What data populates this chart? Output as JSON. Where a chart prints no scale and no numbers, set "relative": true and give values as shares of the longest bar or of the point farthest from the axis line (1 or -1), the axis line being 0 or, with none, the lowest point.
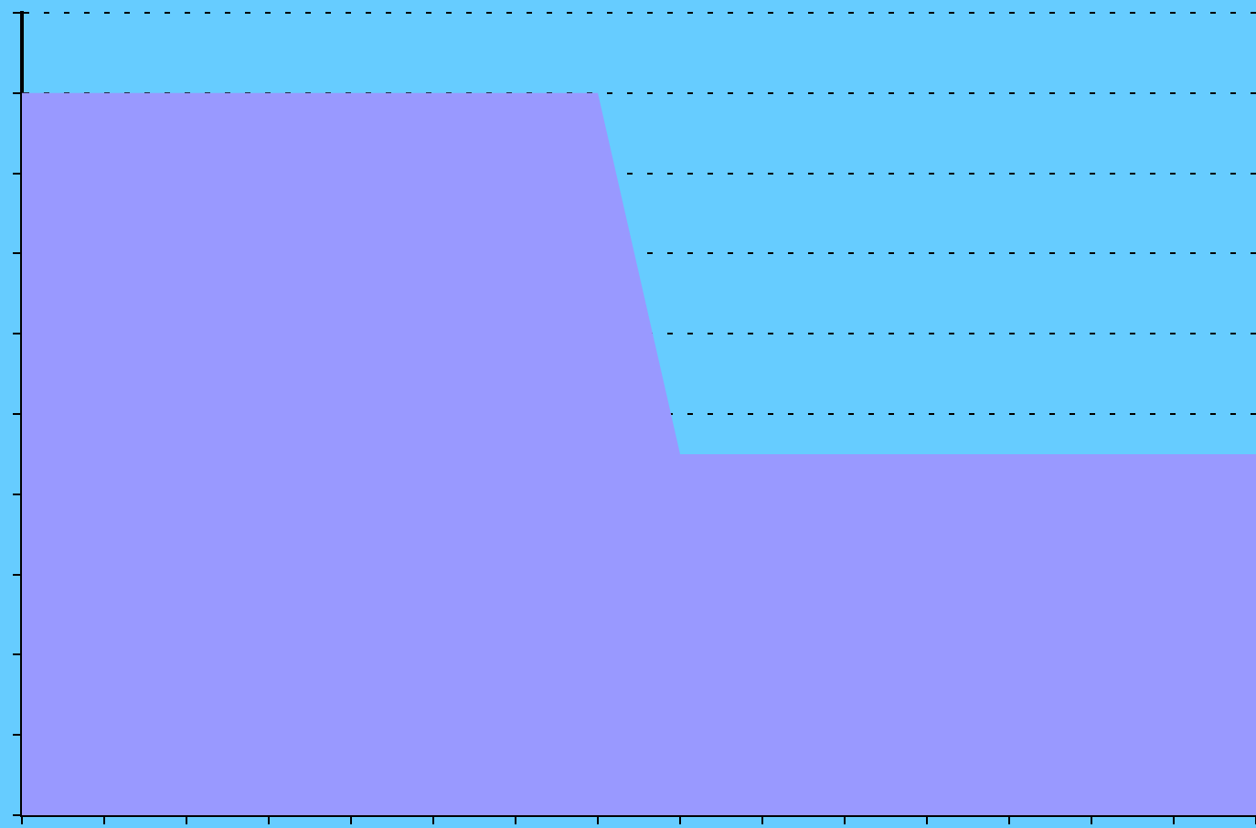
{
  "chart_data": {
    "type": "area",
    "relative": true,
    "categories": [
      null,
      null,
      null,
      null,
      null,
      null,
      null,
      null,
      null,
      null,
      null,
      null,
      null,
      null,
      null,
      null
    ],
    "values": [
      1,
      1,
      1,
      1,
      1,
      1,
      1,
      1,
      0.5,
      0.5,
      0.5,
      0.5,
      0.5,
      0.5,
      0.5,
      0.5
    ],
    "color": "#9999ff",
    "grid": "y",
    "tick_labels": false
  }
}
